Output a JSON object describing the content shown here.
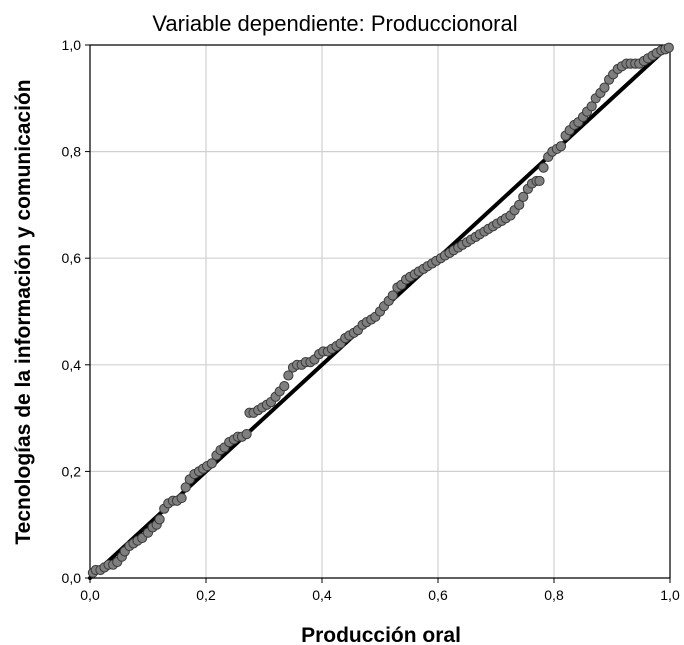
{
  "chart_data": {
    "type": "scatter",
    "title": "Variable dependiente: Produccionoral",
    "xlabel": "Producción oral",
    "ylabel": "Tecnologías de la información y comunicación",
    "xlim": [
      0,
      1
    ],
    "ylim": [
      0,
      1
    ],
    "x_ticks": [
      "0,0",
      "0,2",
      "0,4",
      "0,6",
      "0,8",
      "1,0"
    ],
    "y_ticks": [
      "0,0",
      "0,2",
      "0,4",
      "0,6",
      "0,8",
      "1,0"
    ],
    "grid": true,
    "reference_line": {
      "from": [
        0,
        0
      ],
      "to": [
        1,
        1
      ]
    },
    "colors": {
      "marker_fill": "#7f7f7f",
      "marker_stroke": "#3a3a3a",
      "line": "#000000",
      "grid": "#d0d0d0"
    },
    "points": [
      [
        0.005,
        0.01
      ],
      [
        0.01,
        0.015
      ],
      [
        0.018,
        0.015
      ],
      [
        0.025,
        0.02
      ],
      [
        0.032,
        0.025
      ],
      [
        0.04,
        0.025
      ],
      [
        0.047,
        0.03
      ],
      [
        0.055,
        0.04
      ],
      [
        0.06,
        0.05
      ],
      [
        0.068,
        0.06
      ],
      [
        0.075,
        0.065
      ],
      [
        0.082,
        0.07
      ],
      [
        0.09,
        0.075
      ],
      [
        0.1,
        0.085
      ],
      [
        0.108,
        0.095
      ],
      [
        0.115,
        0.1
      ],
      [
        0.12,
        0.11
      ],
      [
        0.128,
        0.13
      ],
      [
        0.135,
        0.14
      ],
      [
        0.143,
        0.145
      ],
      [
        0.15,
        0.145
      ],
      [
        0.158,
        0.15
      ],
      [
        0.165,
        0.17
      ],
      [
        0.172,
        0.185
      ],
      [
        0.18,
        0.195
      ],
      [
        0.188,
        0.2
      ],
      [
        0.195,
        0.205
      ],
      [
        0.202,
        0.21
      ],
      [
        0.21,
        0.215
      ],
      [
        0.218,
        0.23
      ],
      [
        0.225,
        0.24
      ],
      [
        0.232,
        0.245
      ],
      [
        0.24,
        0.255
      ],
      [
        0.248,
        0.26
      ],
      [
        0.255,
        0.265
      ],
      [
        0.262,
        0.265
      ],
      [
        0.27,
        0.27
      ],
      [
        0.275,
        0.31
      ],
      [
        0.282,
        0.31
      ],
      [
        0.29,
        0.315
      ],
      [
        0.297,
        0.32
      ],
      [
        0.305,
        0.325
      ],
      [
        0.312,
        0.33
      ],
      [
        0.32,
        0.34
      ],
      [
        0.327,
        0.35
      ],
      [
        0.335,
        0.36
      ],
      [
        0.342,
        0.38
      ],
      [
        0.35,
        0.395
      ],
      [
        0.357,
        0.4
      ],
      [
        0.365,
        0.4
      ],
      [
        0.372,
        0.405
      ],
      [
        0.38,
        0.405
      ],
      [
        0.387,
        0.41
      ],
      [
        0.395,
        0.42
      ],
      [
        0.402,
        0.425
      ],
      [
        0.41,
        0.425
      ],
      [
        0.417,
        0.43
      ],
      [
        0.425,
        0.435
      ],
      [
        0.432,
        0.44
      ],
      [
        0.44,
        0.45
      ],
      [
        0.447,
        0.455
      ],
      [
        0.455,
        0.46
      ],
      [
        0.462,
        0.465
      ],
      [
        0.47,
        0.475
      ],
      [
        0.477,
        0.48
      ],
      [
        0.485,
        0.485
      ],
      [
        0.492,
        0.49
      ],
      [
        0.5,
        0.5
      ],
      [
        0.507,
        0.51
      ],
      [
        0.515,
        0.52
      ],
      [
        0.522,
        0.53
      ],
      [
        0.53,
        0.545
      ],
      [
        0.537,
        0.55
      ],
      [
        0.545,
        0.56
      ],
      [
        0.552,
        0.565
      ],
      [
        0.56,
        0.57
      ],
      [
        0.567,
        0.575
      ],
      [
        0.575,
        0.58
      ],
      [
        0.582,
        0.585
      ],
      [
        0.59,
        0.59
      ],
      [
        0.597,
        0.595
      ],
      [
        0.605,
        0.6
      ],
      [
        0.612,
        0.605
      ],
      [
        0.62,
        0.61
      ],
      [
        0.627,
        0.615
      ],
      [
        0.635,
        0.62
      ],
      [
        0.642,
        0.625
      ],
      [
        0.65,
        0.63
      ],
      [
        0.657,
        0.635
      ],
      [
        0.665,
        0.64
      ],
      [
        0.672,
        0.645
      ],
      [
        0.68,
        0.65
      ],
      [
        0.687,
        0.655
      ],
      [
        0.695,
        0.66
      ],
      [
        0.702,
        0.665
      ],
      [
        0.71,
        0.67
      ],
      [
        0.717,
        0.675
      ],
      [
        0.725,
        0.68
      ],
      [
        0.732,
        0.69
      ],
      [
        0.74,
        0.7
      ],
      [
        0.747,
        0.715
      ],
      [
        0.755,
        0.73
      ],
      [
        0.762,
        0.74
      ],
      [
        0.77,
        0.745
      ],
      [
        0.775,
        0.745
      ],
      [
        0.782,
        0.77
      ],
      [
        0.79,
        0.79
      ],
      [
        0.797,
        0.8
      ],
      [
        0.805,
        0.805
      ],
      [
        0.812,
        0.81
      ],
      [
        0.82,
        0.83
      ],
      [
        0.827,
        0.84
      ],
      [
        0.835,
        0.85
      ],
      [
        0.842,
        0.855
      ],
      [
        0.85,
        0.865
      ],
      [
        0.857,
        0.875
      ],
      [
        0.865,
        0.885
      ],
      [
        0.872,
        0.9
      ],
      [
        0.88,
        0.91
      ],
      [
        0.887,
        0.92
      ],
      [
        0.895,
        0.935
      ],
      [
        0.902,
        0.945
      ],
      [
        0.91,
        0.955
      ],
      [
        0.917,
        0.96
      ],
      [
        0.925,
        0.965
      ],
      [
        0.932,
        0.965
      ],
      [
        0.94,
        0.965
      ],
      [
        0.947,
        0.965
      ],
      [
        0.955,
        0.97
      ],
      [
        0.962,
        0.975
      ],
      [
        0.97,
        0.98
      ],
      [
        0.977,
        0.985
      ],
      [
        0.985,
        0.99
      ],
      [
        0.992,
        0.992
      ],
      [
        0.998,
        0.995
      ]
    ]
  }
}
